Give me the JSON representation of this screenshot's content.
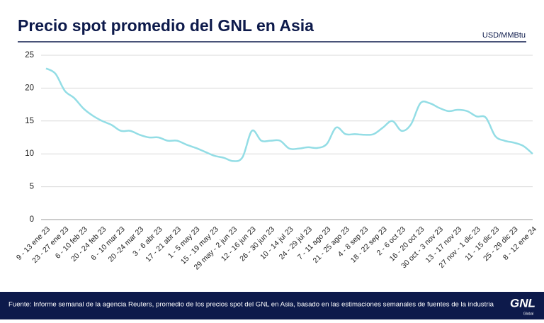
{
  "chart_data": {
    "type": "line",
    "title": "Precio spot promedio del GNL en Asia",
    "unit_label": "USD/MMBtu",
    "source": "Fuente: Informe semanal de la agencia Reuters, promedio de los precios spot del GNL en Asia, basado en las estimaciones semanales de fuentes de la industria",
    "logo": {
      "mark": "GNL",
      "sub": "Global"
    },
    "categories": [
      "9 - 13 ene 23",
      null,
      "23 - 27 ene 23",
      null,
      "6 - 10 feb 23",
      null,
      "20 - 24 feb 23",
      null,
      "6 - 10 mar 23",
      null,
      "20 -24 mar 23",
      null,
      "3 - 6 abr 23",
      null,
      "17 - 21 abr 23",
      null,
      "1 - 5 may 23",
      null,
      "15 - 19 may 23",
      null,
      "29 may - 2 jun 23",
      null,
      "12 - 16 jun 23",
      null,
      "26 - 30 jun 23",
      null,
      "10 - 14 jul 23",
      null,
      "24 - 29 jul 23",
      null,
      "7 - 11 ago 23",
      null,
      "21 - 25 ago 23",
      null,
      "4 - 8 sep 23",
      null,
      "18 - 22 sep 23",
      null,
      "2 - 6 oct 23",
      null,
      "16 - 20 oct 23",
      null,
      "30 oct - 3 nov 23",
      null,
      "13 - 17 nov 23",
      null,
      "27 nov - 1 dic 23",
      null,
      "11 - 15 dic 23",
      null,
      "25 - 29 dic 23",
      null,
      "8 - 12 ene 24"
    ],
    "series": [
      {
        "name": "Precio spot",
        "color": "#93dde5",
        "values": [
          23.0,
          22.2,
          19.6,
          18.5,
          16.9,
          15.8,
          15.0,
          14.4,
          13.5,
          13.5,
          12.9,
          12.5,
          12.5,
          12.0,
          12.0,
          11.4,
          10.9,
          10.3,
          9.7,
          9.4,
          8.9,
          9.5,
          13.5,
          12.0,
          12.0,
          12.0,
          10.8,
          10.8,
          11.0,
          10.9,
          11.5,
          14.0,
          13.0,
          13.0,
          12.9,
          13.0,
          14.0,
          15.0,
          13.5,
          14.5,
          17.7,
          17.7,
          17.0,
          16.5,
          16.7,
          16.5,
          15.7,
          15.5,
          12.7,
          12.0,
          11.7,
          11.2,
          10.0
        ]
      }
    ],
    "ylim": [
      0,
      25
    ],
    "yticks": [
      0,
      5,
      10,
      15,
      20,
      25
    ],
    "grid": true
  }
}
